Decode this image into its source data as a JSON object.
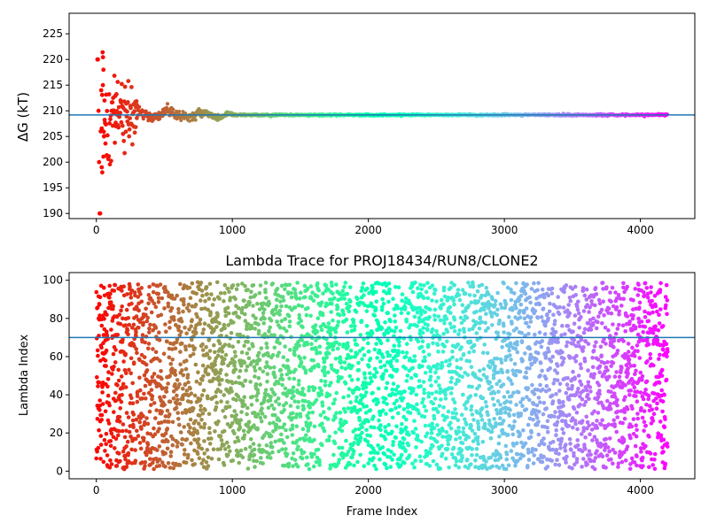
{
  "chart_data": [
    {
      "type": "scatter",
      "title": "",
      "xlabel": "",
      "ylabel": "ΔG (kT)",
      "xlim": [
        -200,
        4400
      ],
      "ylim": [
        189,
        229
      ],
      "xticks": [
        0,
        1000,
        2000,
        3000,
        4000
      ],
      "yticks": [
        190,
        195,
        200,
        205,
        210,
        215,
        220,
        225
      ],
      "colormap": "rainbow",
      "color_by": "x",
      "hline": {
        "y": 209.2,
        "color": "#1f77b4"
      },
      "convergence": {
        "x_range": [
          0,
          4200
        ],
        "final_value": 209.2,
        "initial_spread": [
          190,
          220
        ],
        "settled_by_x": 1000
      }
    },
    {
      "type": "scatter",
      "title": "Lambda Trace for PROJ18434/RUN8/CLONE2",
      "xlabel": "Frame Index",
      "ylabel": "Lambda Index",
      "xlim": [
        -200,
        4400
      ],
      "ylim": [
        -4,
        104
      ],
      "xticks": [
        0,
        1000,
        2000,
        3000,
        4000
      ],
      "yticks": [
        0,
        20,
        40,
        60,
        80,
        100
      ],
      "colormap": "rainbow",
      "color_by": "x",
      "hline": {
        "y": 70,
        "color": "#1f77b4"
      },
      "distribution": {
        "x_range": [
          0,
          4200
        ],
        "y_range": [
          1,
          99
        ],
        "points": 4200
      }
    }
  ]
}
